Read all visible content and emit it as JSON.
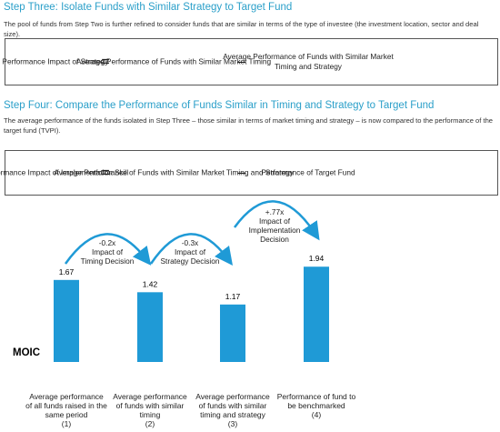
{
  "step3": {
    "title": "Step Three: Isolate Funds with Similar Strategy to Target Fund",
    "text": "The pool of funds from Step Two is further refined to consider funds that are similar in terms of the type of investee (the investment location, sector and deal size)."
  },
  "formula1": {
    "left": "Performance Impact of\nStrategy",
    "equals": "=",
    "term1": "Average Performance of Funds\nwith Similar Market Timing",
    "minus": "–",
    "term2": "Average Performance of Funds\nwith Similar Market Timing and\nStrategy"
  },
  "step4": {
    "title": "Step Four: Compare the Performance of Funds Similar in Timing and Strategy to Target Fund",
    "text": "The average performance of the funds isolated in Step Three – those similar in terms of market timing and strategy – is now compared to the performance of the target fund (TVPI)."
  },
  "formula2": {
    "left": "Performance Impact of\nImplementation Skill",
    "equals": "=",
    "term1": "Average Performance of Funds\nwith Similar Market Timing and\nStrategy",
    "minus": "–",
    "term2": "Performance of Target Fund"
  },
  "chart_data": {
    "type": "bar",
    "y_label": "MOIC",
    "color": "#1f9ad6",
    "categories": [
      "Average performance\nof all funds raised in the\nsame period\n(1)",
      "Average performance\nof funds with similar\ntiming\n(2)",
      "Average performance\nof funds with similar\ntiming and strategy\n(3)",
      "Performance of fund to\nbe benchmarked\n(4)"
    ],
    "values": [
      1.67,
      1.42,
      1.17,
      1.94
    ],
    "annotations": [
      "-0.2x\nImpact of\nTiming Decision",
      "-0.3x\nImpact of\nStrategy Decision",
      "+.77x\nImpact of\nImplementation\nDecision"
    ]
  }
}
